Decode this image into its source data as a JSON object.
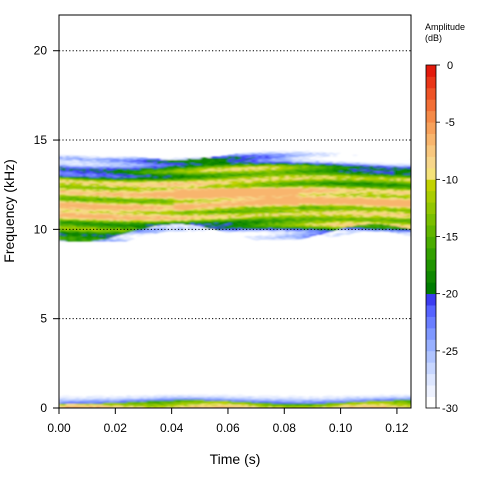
{
  "chart_data": {
    "type": "heatmap",
    "title": "",
    "xlabel": "Time (s)",
    "ylabel": "Frequency (kHz)",
    "xlim": [
      0,
      0.125
    ],
    "ylim": [
      0,
      22
    ],
    "x_ticks": [
      0.0,
      0.02,
      0.04,
      0.06,
      0.08,
      0.1,
      0.12
    ],
    "x_tick_labels": [
      "0.00",
      "0.02",
      "0.04",
      "0.06",
      "0.08",
      "0.10",
      "0.12"
    ],
    "y_ticks": [
      0,
      5,
      10,
      15,
      20
    ],
    "y_tick_labels": [
      "0",
      "5",
      "10",
      "15",
      "20"
    ],
    "grid": {
      "horizontal_dotted_at": [
        5,
        10,
        15,
        20
      ]
    },
    "colorbar": {
      "title": "Amplitude\n(dB)",
      "title_line1": "Amplitude",
      "title_line2": "(dB)",
      "range": [
        -30,
        0
      ],
      "ticks": [
        0,
        -5,
        -10,
        -15,
        -20,
        -25,
        -30
      ],
      "tick_labels": [
        "0",
        "-5",
        "-10",
        "-15",
        "-20",
        "-25",
        "-30"
      ],
      "placement": "right",
      "levels": [
        {
          "from": -30,
          "to": -20,
          "colors": [
            "#ffffff",
            "#eef2ff",
            "#dde6ff",
            "#c7d6ff",
            "#b0c4ff",
            "#98b0ff",
            "#7f98ff",
            "#6a7eff",
            "#5663ff",
            "#3c3cf0"
          ]
        },
        {
          "from": -20,
          "to": -10,
          "colors": [
            "#007c00",
            "#0f8800",
            "#1f9400",
            "#33a000",
            "#4aac00",
            "#62b600",
            "#7abf00",
            "#92c600",
            "#aacd00",
            "#c2d200"
          ]
        },
        {
          "from": -10,
          "to": 0,
          "colors": [
            "#f5e27a",
            "#f7d68a",
            "#f8c77e",
            "#f8b56d",
            "#f7a15b",
            "#f58a48",
            "#f26f36",
            "#ee5326",
            "#e93618",
            "#e31a0c"
          ]
        }
      ]
    },
    "bands": [
      {
        "name": "",
        "freq_range_khz": [
          9.3,
          14.5
        ],
        "time_range_s": [
          0.0,
          0.125
        ],
        "peak_db": -7,
        "core_range_khz": [
          10.3,
          13.2
        ]
      },
      {
        "name": "",
        "freq_range_khz": [
          0.0,
          0.9
        ],
        "time_range_s": [
          0.0,
          0.125
        ],
        "peak_db": -5,
        "core_range_khz": [
          0.0,
          0.4
        ]
      }
    ]
  }
}
